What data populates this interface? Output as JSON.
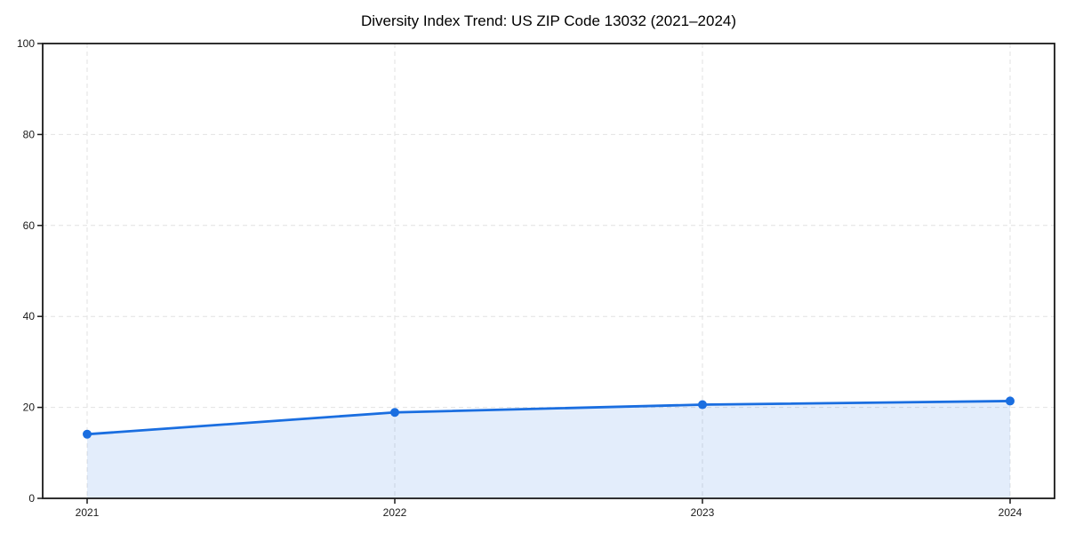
{
  "chart_data": {
    "type": "area",
    "title": "Diversity Index Trend: US ZIP Code 13032 (2021–2024)",
    "series_name": "Diversity Index",
    "x": [
      2021,
      2022,
      2023,
      2024
    ],
    "values": [
      14.1,
      18.9,
      20.6,
      21.4
    ],
    "xlabel": "",
    "ylabel": "",
    "ylim": [
      0,
      100
    ],
    "yticks": [
      0,
      20,
      40,
      60,
      80,
      100
    ],
    "grid": true,
    "grid_style": "dashed",
    "legend_position": "none",
    "marker": "circle",
    "colors": {
      "line": "#1a6ee0",
      "marker": "#1a6ee0",
      "fill": "#1a6ee0",
      "fill_opacity": 0.12,
      "grid": "#e2e2e2",
      "frame": "#1a1a1a",
      "tick_text": "#1a1a1a",
      "title_text": "#000000",
      "background": "#ffffff"
    }
  }
}
